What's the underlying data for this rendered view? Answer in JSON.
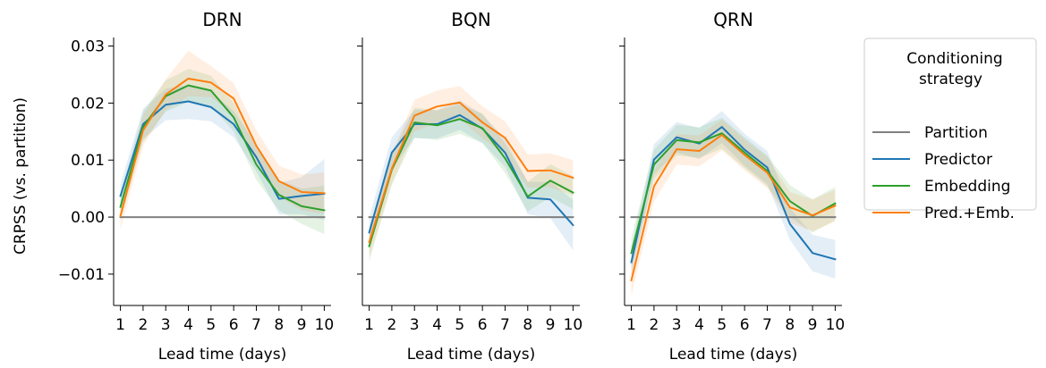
{
  "chart_data": {
    "type": "line",
    "ylabel": "CRPSS (vs. partition)",
    "xlabel": "Lead time (days)",
    "x": [
      1,
      2,
      3,
      4,
      5,
      6,
      7,
      8,
      9,
      10
    ],
    "ylim": [
      -0.0155,
      0.0315
    ],
    "yticks": [
      -0.01,
      0.0,
      0.01,
      0.02,
      0.03
    ],
    "ytick_labels": [
      "−0.01",
      "0.00",
      "0.01",
      "0.02",
      "0.03"
    ],
    "grid": false,
    "legend": {
      "title": "Conditioning strategy",
      "title_lines": [
        "Conditioning",
        "strategy"
      ],
      "placement": "right",
      "entries": [
        "Partition",
        "Predictor",
        "Embedding",
        "Pred.+Emb."
      ]
    },
    "series_colors": {
      "Partition": "#808080",
      "Predictor": "#1f77b4",
      "Embedding": "#2ca02c",
      "Pred.+Emb.": "#ff7f0e"
    },
    "panels": [
      {
        "title": "DRN",
        "series": [
          {
            "name": "Partition",
            "values": [
              0,
              0,
              0,
              0,
              0,
              0,
              0,
              0,
              0,
              0
            ]
          },
          {
            "name": "Predictor",
            "values": [
              0.0037,
              0.0163,
              0.0197,
              0.0203,
              0.0193,
              0.0163,
              0.0105,
              0.0032,
              0.0037,
              0.0041
            ],
            "band_low": [
              0.0015,
              0.0137,
              0.017,
              0.0172,
              0.0168,
              0.014,
              0.008,
              0.0005,
              0.0005,
              -0.0005
            ],
            "band_high": [
              0.0058,
              0.019,
              0.0225,
              0.0232,
              0.022,
              0.0186,
              0.0128,
              0.006,
              0.007,
              0.0102
            ]
          },
          {
            "name": "Embedding",
            "values": [
              0.0018,
              0.0158,
              0.0212,
              0.0231,
              0.0222,
              0.0175,
              0.0092,
              0.0039,
              0.0019,
              0.0012
            ],
            "band_low": [
              -0.0005,
              0.0132,
              0.0185,
              0.0202,
              0.0195,
              0.015,
              0.0065,
              0.0012,
              -0.0012,
              -0.003
            ],
            "band_high": [
              0.004,
              0.0185,
              0.024,
              0.026,
              0.0248,
              0.02,
              0.012,
              0.0065,
              0.005,
              0.0055
            ]
          },
          {
            "name": "Pred.+Emb.",
            "values": [
              0.0002,
              0.0152,
              0.0215,
              0.0243,
              0.0236,
              0.0208,
              0.0125,
              0.0063,
              0.0044,
              0.0042
            ],
            "band_low": [
              -0.0022,
              0.0125,
              0.0188,
              0.0212,
              0.021,
              0.018,
              0.0098,
              0.0035,
              0.0012,
              0.0005
            ],
            "band_high": [
              0.0025,
              0.0178,
              0.0242,
              0.0292,
              0.0265,
              0.0235,
              0.0152,
              0.009,
              0.0075,
              0.0078
            ]
          }
        ]
      },
      {
        "title": "BQN",
        "series": [
          {
            "name": "Partition",
            "values": [
              0,
              0,
              0,
              0,
              0,
              0,
              0,
              0,
              0,
              0
            ]
          },
          {
            "name": "Predictor",
            "values": [
              -0.0027,
              0.0113,
              0.0163,
              0.0163,
              0.0179,
              0.0155,
              0.0113,
              0.0034,
              0.0031,
              -0.0014
            ],
            "band_low": [
              -0.0055,
              0.0085,
              0.0138,
              0.0138,
              0.0153,
              0.013,
              0.0088,
              0.0005,
              -0.0002,
              -0.0058
            ],
            "band_high": [
              0.0,
              0.014,
              0.0188,
              0.0188,
              0.0205,
              0.018,
              0.0138,
              0.0062,
              0.0062,
              0.003
            ]
          },
          {
            "name": "Embedding",
            "values": [
              -0.0051,
              0.0083,
              0.0166,
              0.0161,
              0.0172,
              0.0156,
              0.0103,
              0.0036,
              0.0064,
              0.0043
            ],
            "band_low": [
              -0.0078,
              0.0057,
              0.014,
              0.0135,
              0.0146,
              0.013,
              0.0077,
              0.001,
              0.0035,
              0.0014
            ],
            "band_high": [
              -0.0024,
              0.0109,
              0.0192,
              0.0187,
              0.0198,
              0.0182,
              0.0129,
              0.0062,
              0.0093,
              0.0072
            ]
          },
          {
            "name": "Pred.+Emb.",
            "values": [
              -0.0044,
              0.0085,
              0.0178,
              0.0194,
              0.0201,
              0.0166,
              0.0139,
              0.0081,
              0.0082,
              0.0069
            ],
            "band_low": [
              -0.007,
              0.0058,
              0.015,
              0.0165,
              0.0172,
              0.0138,
              0.011,
              0.0052,
              0.0052,
              0.0038
            ],
            "band_high": [
              -0.0018,
              0.0112,
              0.0206,
              0.0222,
              0.023,
              0.0194,
              0.0168,
              0.011,
              0.0112,
              0.01
            ]
          }
        ]
      },
      {
        "title": "QRN",
        "series": [
          {
            "name": "Partition",
            "values": [
              0,
              0,
              0,
              0,
              0,
              0,
              0,
              0,
              0,
              0
            ]
          },
          {
            "name": "Predictor",
            "values": [
              -0.0079,
              0.0101,
              0.014,
              0.0129,
              0.0158,
              0.0118,
              0.0087,
              -0.0012,
              -0.0063,
              -0.0074
            ],
            "band_low": [
              -0.0105,
              0.0075,
              0.0113,
              0.0102,
              0.013,
              0.009,
              0.0058,
              -0.004,
              -0.0095,
              -0.0108
            ],
            "band_high": [
              -0.0052,
              0.0128,
              0.0167,
              0.0156,
              0.0186,
              0.0146,
              0.0116,
              0.0016,
              -0.0031,
              -0.004
            ]
          },
          {
            "name": "Embedding",
            "values": [
              -0.0063,
              0.0092,
              0.0135,
              0.0131,
              0.0147,
              0.0113,
              0.0081,
              0.0028,
              0.0002,
              0.0024
            ],
            "band_low": [
              -0.009,
              0.0066,
              0.0108,
              0.0104,
              0.012,
              0.0086,
              0.0054,
              0.0,
              -0.0027,
              -0.0005
            ],
            "band_high": [
              -0.0036,
              0.0118,
              0.0162,
              0.0158,
              0.0174,
              0.014,
              0.0108,
              0.0056,
              0.0031,
              0.0053
            ]
          },
          {
            "name": "Pred.+Emb.",
            "values": [
              -0.0111,
              0.0054,
              0.0119,
              0.0116,
              0.0144,
              0.0109,
              0.0078,
              0.0017,
              0.0003,
              0.002
            ],
            "band_low": [
              -0.0138,
              0.0027,
              0.0092,
              0.0089,
              0.0117,
              0.0082,
              0.0051,
              -0.001,
              -0.0025,
              -0.0008
            ],
            "band_high": [
              -0.0084,
              0.0081,
              0.0146,
              0.0143,
              0.0171,
              0.0136,
              0.0105,
              0.0044,
              0.0031,
              0.0048
            ]
          }
        ]
      }
    ]
  }
}
